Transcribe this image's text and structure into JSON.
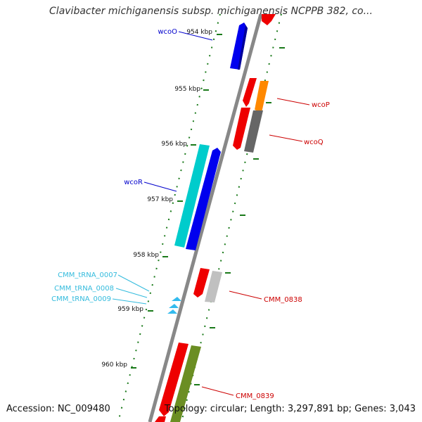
{
  "title": "Clavibacter michiganensis subsp. michiganensis NCPPB 382, co...",
  "footer": {
    "accession": "Accession: NC_009480",
    "summary": "Topology: circular; Length: 3,297,891 bp; Genes: 3,043"
  },
  "ruler_ticks": [
    "954 kbp",
    "955 kbp",
    "956 kbp",
    "957 kbp",
    "958 kbp",
    "959 kbp",
    "960 kbp"
  ],
  "gene_labels": [
    {
      "text": "wcoO",
      "color": "#0000cc"
    },
    {
      "text": "wcoP",
      "color": "#cc0000"
    },
    {
      "text": "wcoQ",
      "color": "#cc0000"
    },
    {
      "text": "wcoR",
      "color": "#0000cc"
    },
    {
      "text": "CMM_tRNA_0007",
      "color": "#33bbdd"
    },
    {
      "text": "CMM_tRNA_0008",
      "color": "#33bbdd"
    },
    {
      "text": "CMM_tRNA_0009",
      "color": "#33bbdd"
    },
    {
      "text": "CMM_0838",
      "color": "#cc0000"
    },
    {
      "text": "CMM_0839",
      "color": "#cc0000"
    }
  ],
  "colors": {
    "backbone": "#888888",
    "ruler": "#1a7a1a",
    "forward_cds": "#0000ee",
    "reverse_cds": "#ee0000",
    "cog_orange": "#ff8800",
    "cog_gray": "#666666",
    "cog_cyan": "#00cccc",
    "cog_lightgray": "#c0c0c0",
    "cog_olive": "#6b8e23",
    "trna": "#33bbee"
  }
}
